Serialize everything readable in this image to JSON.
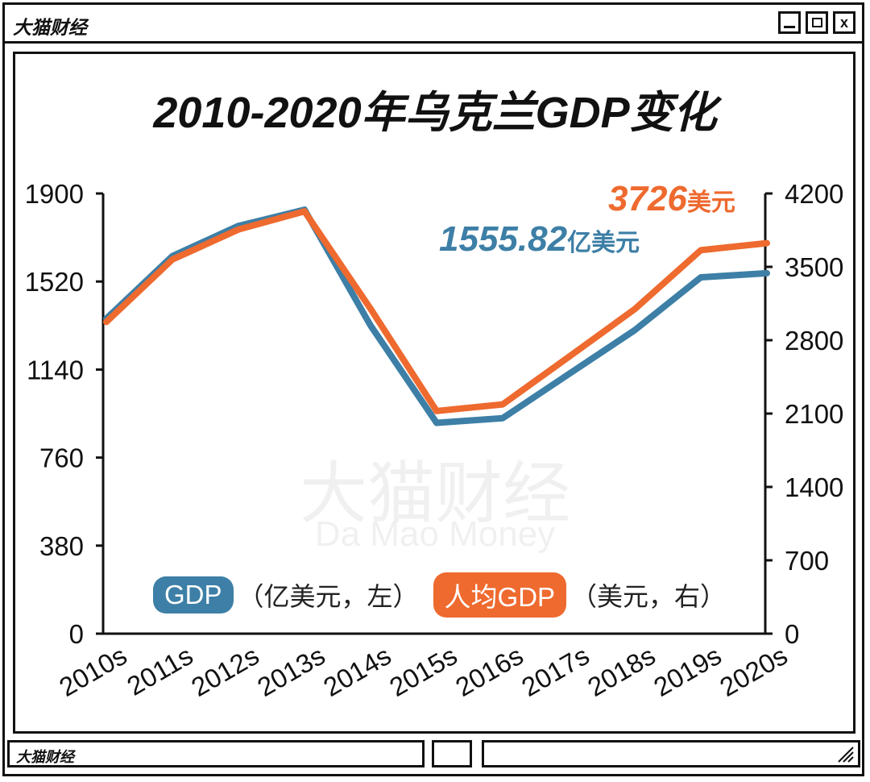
{
  "window": {
    "brand": "大猫财经",
    "controls": {
      "minimize": "_",
      "maximize": "□",
      "close": "x"
    },
    "status_brand": "大猫财经"
  },
  "watermark": {
    "cn": "大猫财经",
    "en": "Da Mao Money"
  },
  "colors": {
    "gdp": "#3d7fa6",
    "per_capita": "#ee6a2f",
    "axis": "#111111"
  },
  "legend": {
    "gdp_label": "GDP",
    "gdp_desc": "（亿美元，左）",
    "pc_label": "人均GDP",
    "pc_desc": "（美元，右）"
  },
  "annotations": {
    "pc_value": "3726",
    "pc_unit": "美元",
    "gdp_value": "1555.82",
    "gdp_unit": "亿美元"
  },
  "chart_data": {
    "type": "line",
    "title": "2010-2020年乌克兰GDP变化",
    "categories": [
      "2010s",
      "2011s",
      "2012s",
      "2013s",
      "2014s",
      "2015s",
      "2016s",
      "2017s",
      "2018s",
      "2019s",
      "2020s"
    ],
    "series": [
      {
        "name": "GDP",
        "axis": "left",
        "unit": "亿美元",
        "values": [
          1360,
          1630,
          1760,
          1830,
          1330,
          910,
          930,
          1120,
          1310,
          1538,
          1555.82
        ]
      },
      {
        "name": "人均GDP",
        "axis": "right",
        "unit": "美元",
        "values": [
          2974,
          3570,
          3856,
          4030,
          3100,
          2125,
          2188,
          2640,
          3097,
          3659,
          3726
        ]
      }
    ],
    "y_left": {
      "ylim": [
        0,
        1900
      ],
      "ticks": [
        0,
        380,
        760,
        1140,
        1520,
        1900
      ]
    },
    "y_right": {
      "ylim": [
        0,
        4200
      ],
      "ticks": [
        0,
        700,
        1400,
        2100,
        2800,
        3500,
        4200
      ]
    }
  }
}
